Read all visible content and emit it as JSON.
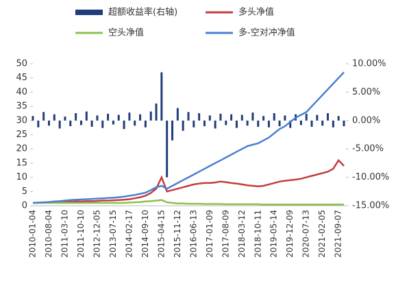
{
  "chart_data": {
    "type": "combo",
    "categories": [
      "2010-01-04",
      null,
      null,
      "2010-08-04",
      null,
      null,
      "2011-03-10",
      null,
      null,
      "2011-10-10",
      null,
      null,
      "2012-12-05",
      null,
      null,
      "2013-07-15",
      null,
      null,
      "2014-02-17",
      null,
      null,
      "2014-09-10",
      null,
      null,
      "2015-04-15",
      null,
      null,
      "2015-11-12",
      null,
      null,
      "2016-06-13",
      null,
      null,
      "2017-01-09",
      null,
      null,
      "2017-08-09",
      null,
      null,
      "2018-03-12",
      null,
      null,
      "2018-10-11",
      null,
      null,
      "2019-05-14",
      null,
      null,
      "2019-12-09",
      null,
      null,
      "2020-07-13",
      null,
      null,
      "2021-02-05",
      null,
      null,
      "2021-09-07",
      null
    ],
    "series": [
      {
        "name": "超额收益率(右轴)",
        "kind": "bar",
        "axis": "y2",
        "color": "#1f3d7a",
        "values": [
          0.8,
          -1.2,
          1.5,
          -0.9,
          1.1,
          -1.4,
          0.7,
          -1.0,
          1.3,
          -0.8,
          1.6,
          -1.1,
          0.9,
          -1.3,
          1.2,
          -0.7,
          1.0,
          -1.5,
          1.4,
          -0.9,
          1.1,
          -1.2,
          1.6,
          3,
          8.5,
          -10,
          -3.5,
          2.2,
          -1.8,
          1.5,
          -1.2,
          1.3,
          -1.0,
          0.9,
          -1.4,
          1.2,
          -0.8,
          1.1,
          -1.3,
          1.0,
          -0.9,
          1.4,
          -1.1,
          0.8,
          -1.2,
          1.3,
          -1.0,
          0.9,
          -1.3,
          1.1,
          -0.8,
          1.2,
          -1.1,
          1.0,
          -0.9,
          1.3,
          -1.2,
          0.8,
          -1.0
        ]
      },
      {
        "name": "多头净值",
        "kind": "line",
        "color": "#c43c3c",
        "values": [
          1,
          1,
          1.1,
          1.2,
          1.2,
          1.3,
          1.3,
          1.4,
          1.5,
          1.5,
          1.6,
          1.6,
          1.7,
          1.8,
          1.8,
          1.9,
          2,
          2.1,
          2.3,
          2.6,
          3,
          3.5,
          4.5,
          6,
          10,
          5,
          5.5,
          6,
          6.5,
          7,
          7.5,
          7.8,
          8,
          8,
          8.2,
          8.5,
          8.3,
          8,
          7.8,
          7.5,
          7.2,
          7,
          6.8,
          7,
          7.5,
          8,
          8.5,
          8.8,
          9,
          9.2,
          9.5,
          10,
          10.5,
          11,
          11.5,
          12,
          13,
          16,
          14
        ]
      },
      {
        "name": "空头净值",
        "kind": "line",
        "color": "#8cc04f",
        "values": [
          1,
          1,
          1,
          1,
          1,
          1,
          1,
          1,
          1,
          1,
          1,
          1,
          1,
          1,
          1,
          1,
          1,
          1,
          1.1,
          1.2,
          1.3,
          1.5,
          1.6,
          1.8,
          2,
          1.2,
          1,
          0.8,
          0.8,
          0.7,
          0.7,
          0.7,
          0.6,
          0.6,
          0.6,
          0.6,
          0.5,
          0.5,
          0.5,
          0.5,
          0.5,
          0.5,
          0.5,
          0.4,
          0.4,
          0.4,
          0.4,
          0.4,
          0.4,
          0.4,
          0.4,
          0.4,
          0.4,
          0.4,
          0.4,
          0.4,
          0.4,
          0.4,
          0.4
        ]
      },
      {
        "name": "多-空对冲净值",
        "kind": "line",
        "color": "#4a7fd0",
        "values": [
          1,
          1.1,
          1.2,
          1.3,
          1.5,
          1.6,
          1.8,
          2,
          2.1,
          2.2,
          2.3,
          2.4,
          2.5,
          2.6,
          2.7,
          2.8,
          3,
          3.2,
          3.5,
          3.8,
          4.2,
          4.6,
          5.5,
          6.5,
          7,
          6,
          7,
          8,
          9,
          10,
          11,
          12,
          13,
          14,
          15,
          16,
          17,
          18,
          19,
          20,
          21,
          21.5,
          22,
          23,
          24,
          25.5,
          27,
          28,
          29.5,
          31,
          32,
          33,
          35,
          37,
          39,
          41,
          43,
          45,
          47
        ]
      }
    ],
    "ylim": [
      0,
      50
    ],
    "yticks": [
      0,
      5,
      10,
      15,
      20,
      25,
      30,
      35,
      40,
      45,
      50
    ],
    "y2lim": [
      -15,
      10
    ],
    "y2ticks": [
      {
        "value": -15,
        "label": "-15.00%"
      },
      {
        "value": -10,
        "label": "-10.00%"
      },
      {
        "value": -5,
        "label": "-5.00%"
      },
      {
        "value": 0,
        "label": "0.00%"
      },
      {
        "value": 5,
        "label": "5.00%"
      },
      {
        "value": 10,
        "label": "10.00%"
      }
    ],
    "legend": "top"
  }
}
